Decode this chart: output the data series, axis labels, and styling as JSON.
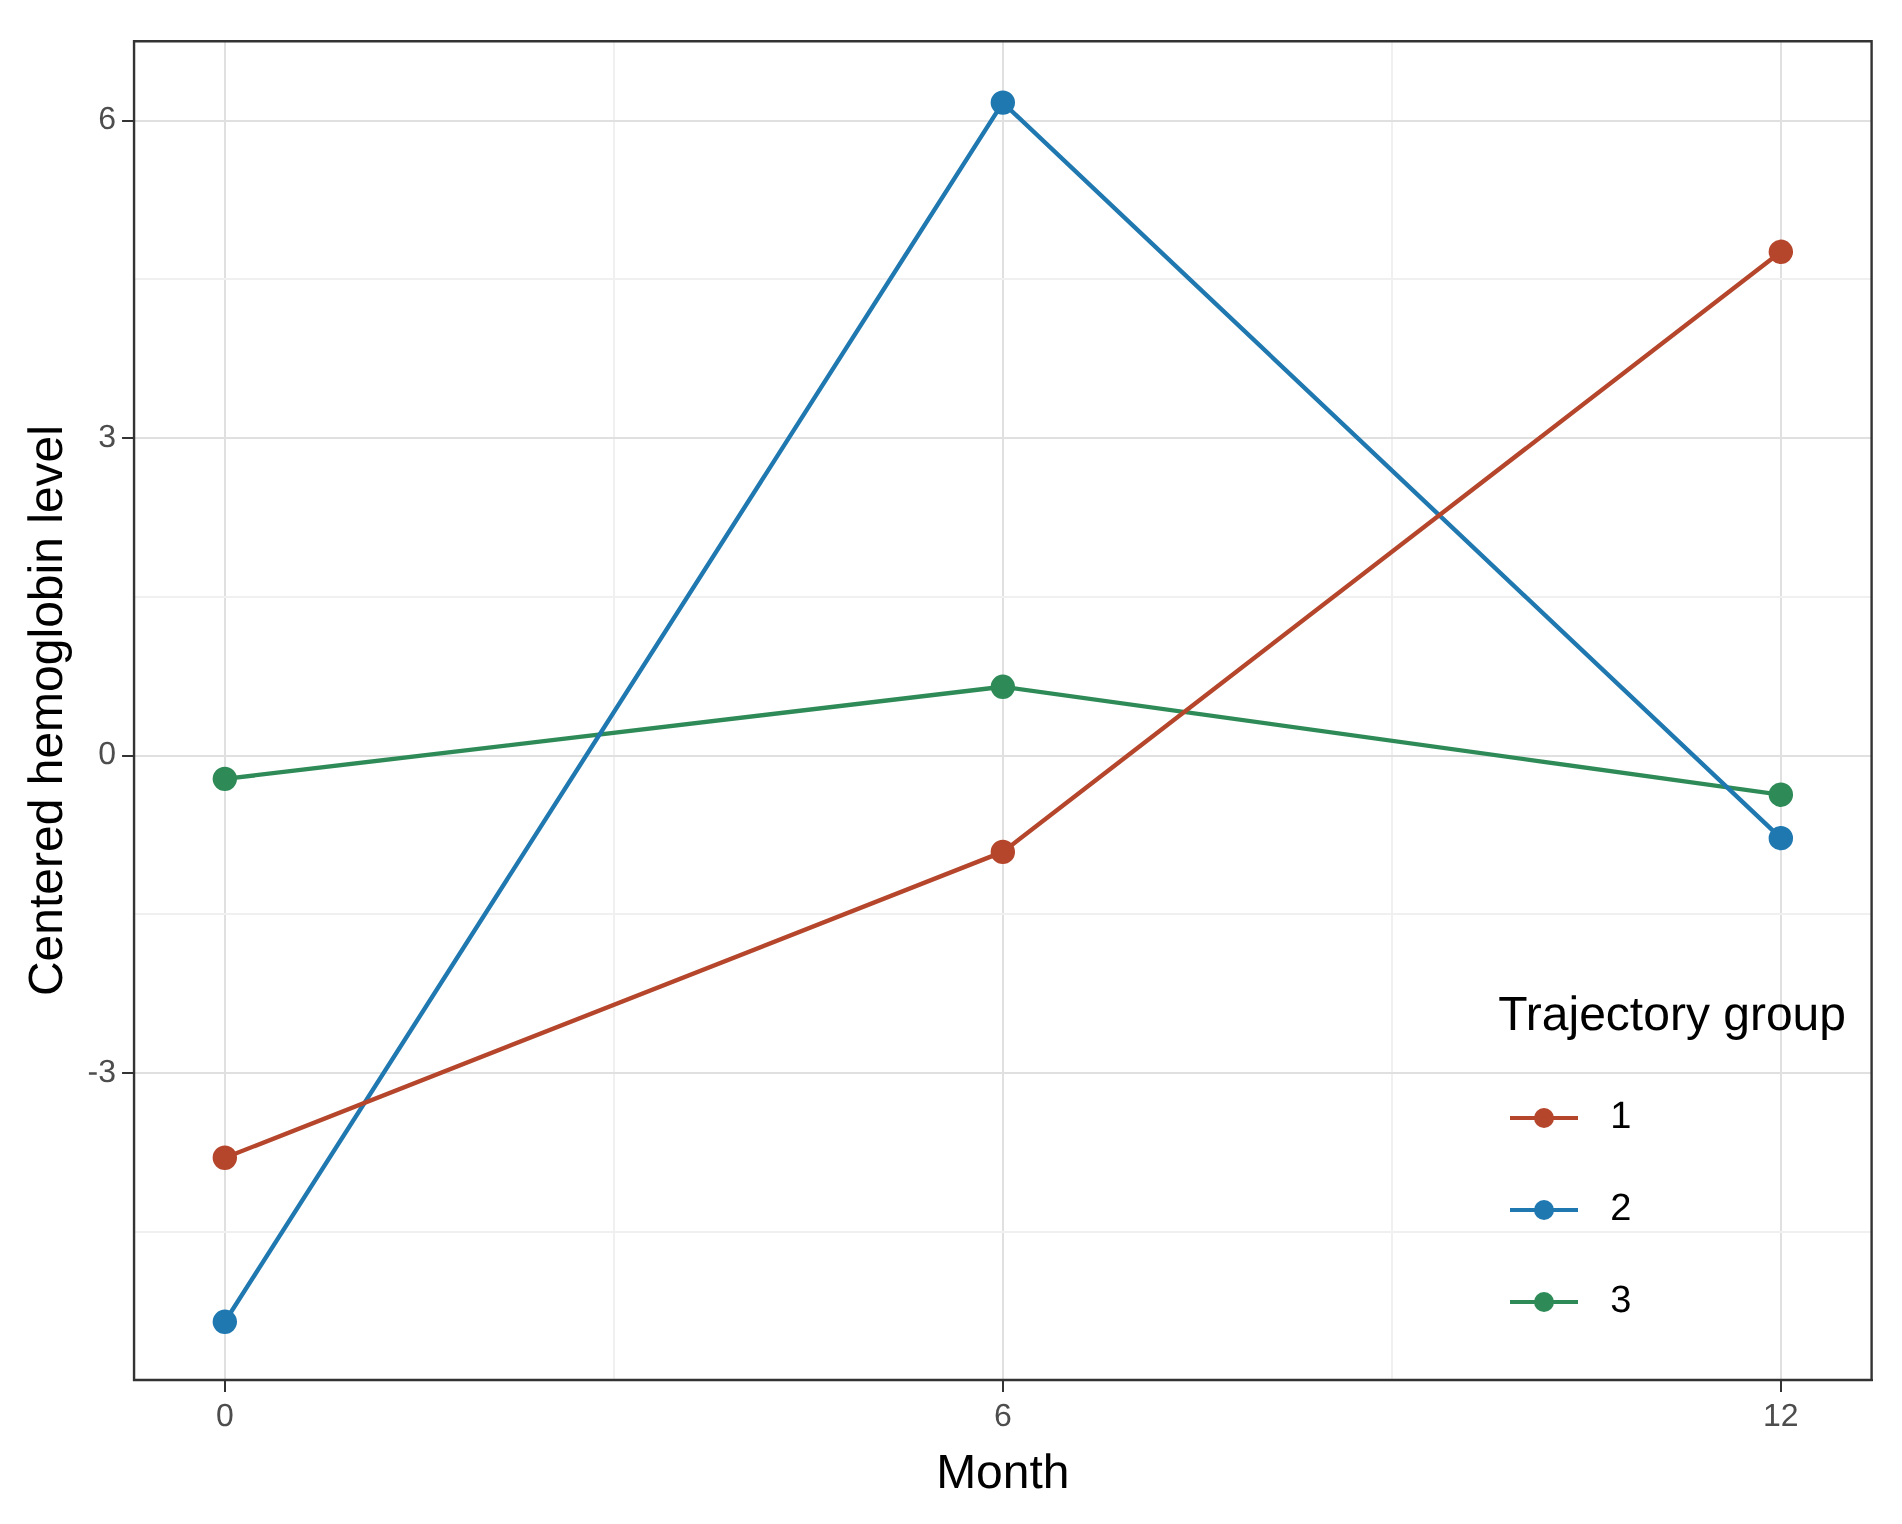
{
  "chart_data": {
    "type": "line",
    "xlabel": "Month",
    "ylabel": "Centered hemoglobin level",
    "legend_title": "Trajectory group",
    "x": [
      0,
      6,
      12
    ],
    "series": [
      {
        "name": "1",
        "color": "#b5462c",
        "values": [
          -3.8,
          -0.91,
          4.76
        ]
      },
      {
        "name": "2",
        "color": "#1f78b0",
        "values": [
          -5.35,
          6.17,
          -0.78
        ]
      },
      {
        "name": "3",
        "color": "#2e8b57",
        "values": [
          -0.22,
          0.65,
          -0.37
        ]
      }
    ],
    "xlim": [
      -0.7,
      12.7
    ],
    "xticks": [
      0,
      {
        "value": 3,
        "label": null
      },
      6,
      {
        "value": 9,
        "label": null
      },
      12
    ],
    "ylim": [
      -5.9,
      6.75
    ],
    "yticks": [
      {
        "value": -4.5,
        "label": null
      },
      -3,
      {
        "value": -1.5,
        "label": null
      },
      0,
      {
        "value": 1.5,
        "label": null
      },
      3,
      {
        "value": 4.5,
        "label": null
      },
      6
    ],
    "grid": true,
    "legend": "bottom right",
    "marker": "circle",
    "line_style": "solid"
  }
}
